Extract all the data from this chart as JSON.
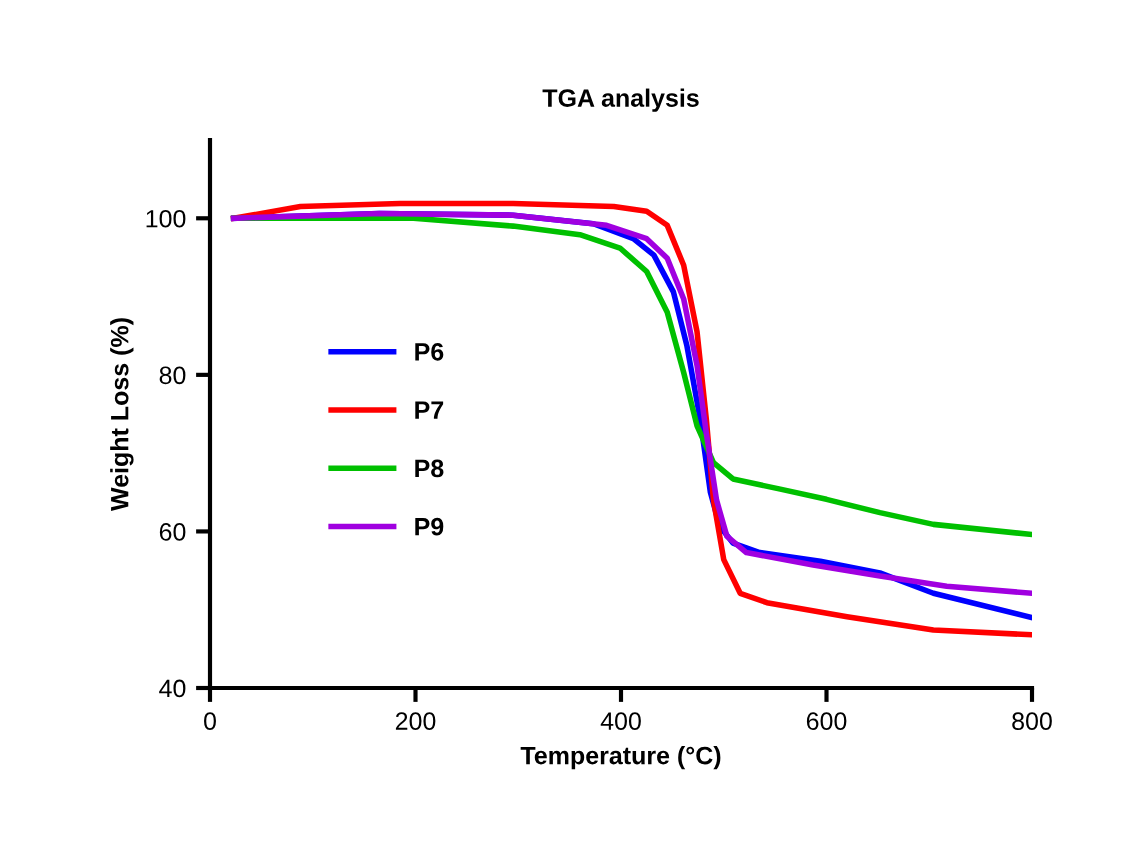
{
  "chart_data": {
    "type": "line",
    "title": "TGA analysis",
    "xlabel": "Temperature (°C)",
    "ylabel": "Weight Loss (%)",
    "xlim": [
      0,
      800
    ],
    "xticks": [
      0,
      200,
      400,
      600,
      800
    ],
    "ylim": [
      40,
      110
    ],
    "yticks": [
      40,
      60,
      80,
      100
    ],
    "grid": false,
    "legend": "left",
    "marker": "none",
    "line_style": "solid",
    "series": [
      {
        "name": "P6",
        "color": "#0000ff",
        "x": [
          23,
          165,
          295,
          373,
          412,
          432,
          451,
          464,
          477,
          487,
          496,
          509,
          535,
          594,
          652,
          704,
          800
        ],
        "values": [
          100,
          100.6,
          100.4,
          99.3,
          97.4,
          95.3,
          90.6,
          83.8,
          74.4,
          65,
          60.7,
          58.5,
          57.3,
          56.2,
          54.7,
          52.1,
          49
        ]
      },
      {
        "name": "P7",
        "color": "#ff0000",
        "x": [
          23,
          88,
          185,
          295,
          393,
          425,
          445,
          461,
          474,
          483,
          490,
          500,
          516,
          542,
          620,
          704,
          800
        ],
        "values": [
          100,
          101.5,
          101.9,
          101.9,
          101.5,
          100.9,
          99.1,
          94,
          85.5,
          74.4,
          64,
          56.4,
          52.1,
          50.9,
          49.1,
          47.4,
          46.8
        ]
      },
      {
        "name": "P8",
        "color": "#00c000",
        "x": [
          23,
          198,
          295,
          360,
          399,
          425,
          445,
          461,
          474,
          490,
          509,
          555,
          600,
          652,
          704,
          800
        ],
        "values": [
          100,
          100,
          99,
          97.9,
          96.2,
          93.2,
          88,
          80.3,
          73.5,
          68.8,
          66.7,
          65.4,
          64.1,
          62.4,
          60.9,
          59.6
        ]
      },
      {
        "name": "P9",
        "color": "#a000e0",
        "x": [
          23,
          165,
          295,
          386,
          425,
          445,
          461,
          474,
          483,
          493,
          503,
          522,
          587,
          652,
          717,
          800
        ],
        "values": [
          100,
          100.6,
          100.4,
          99.1,
          97.4,
          94.9,
          89.7,
          81.2,
          72.6,
          64,
          59.4,
          57.3,
          55.7,
          54.3,
          53,
          52.1
        ]
      }
    ]
  }
}
